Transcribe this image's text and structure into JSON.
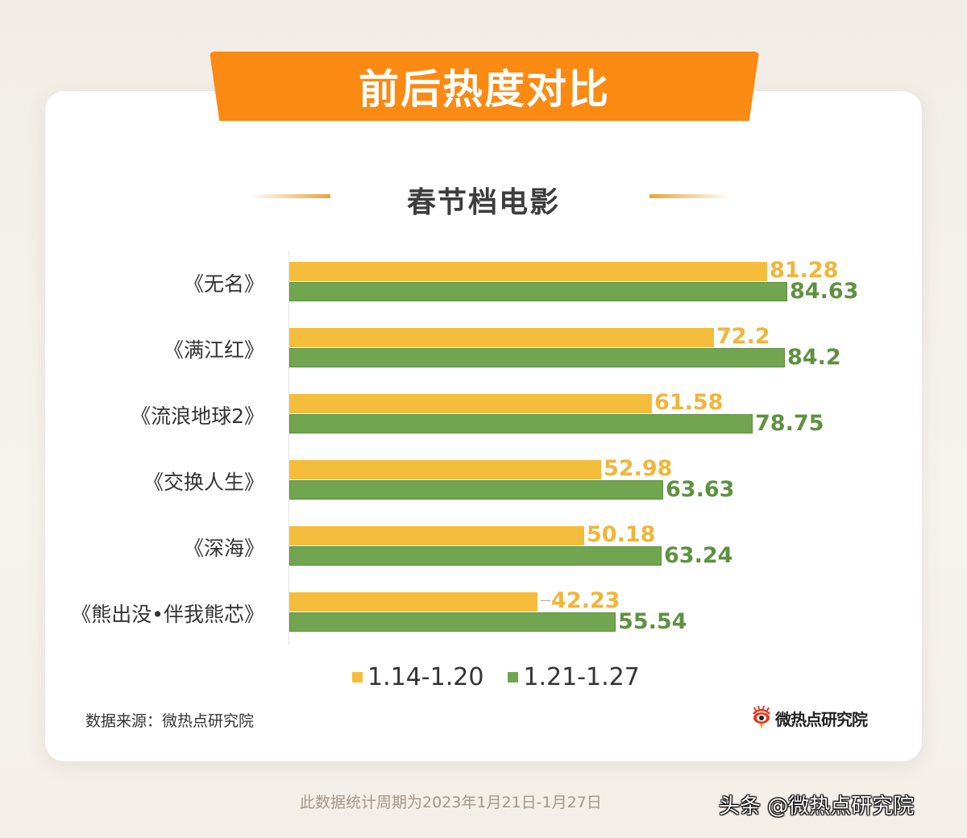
{
  "banner": {
    "title": "前后热度对比"
  },
  "subtitle": "春节档电影",
  "colors": {
    "series1": "#f5bd3c",
    "series2": "#72a54f",
    "banner": "#fb8a12"
  },
  "chart_data": {
    "type": "bar",
    "orientation": "horizontal",
    "title": "春节档电影",
    "categories": [
      "《无名》",
      "《满江红》",
      "《流浪地球2》",
      "《交换人生》",
      "《深海》",
      "《熊出没•伴我熊芯》"
    ],
    "series": [
      {
        "name": "1.14-1.20",
        "color": "#f5bd3c",
        "values": [
          81.28,
          72.2,
          61.58,
          52.98,
          50.18,
          42.23
        ]
      },
      {
        "name": "1.21-1.27",
        "color": "#72a54f",
        "values": [
          84.63,
          84.2,
          78.75,
          63.63,
          63.24,
          55.54
        ]
      }
    ],
    "value_labels": {
      "series1": [
        "81.28",
        "72.2",
        "61.58",
        "52.98",
        "50.18",
        "42.23"
      ],
      "series2": [
        "84.63",
        "84.2",
        "78.75",
        "63.63",
        "63.24",
        "55.54"
      ]
    },
    "xlabel": "",
    "ylabel": "",
    "grid": false,
    "legend_position": "bottom"
  },
  "legend": [
    {
      "label": "1.14-1.20",
      "color": "#f5bd3c"
    },
    {
      "label": "1.21-1.27",
      "color": "#72a54f"
    }
  ],
  "source": "数据来源：微热点研究院",
  "logo": {
    "icon": "weibo-eye-icon",
    "text": "微热点研究院"
  },
  "footnote": "此数据统计周期为2023年1月21日-1月27日",
  "watermark": "头条 @微热点研究院"
}
